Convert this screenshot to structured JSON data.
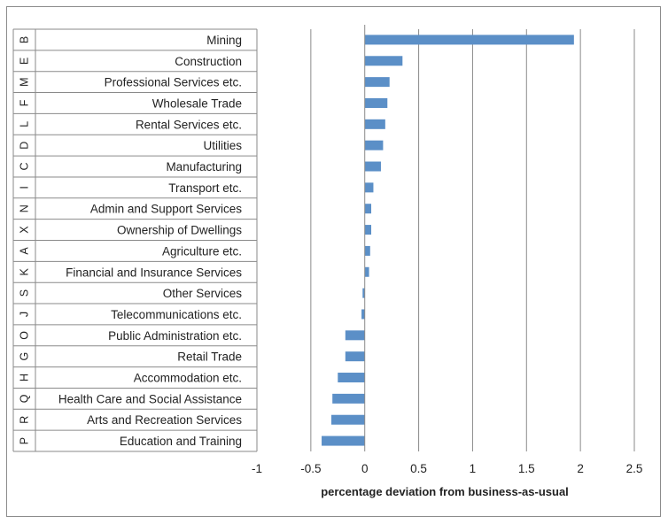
{
  "chart_data": {
    "type": "bar",
    "orientation": "horizontal",
    "xlabel": "percentage deviation from business-as-usual",
    "xlim": [
      -1,
      2.5
    ],
    "xticks": [
      "-1",
      "-0.5",
      "0",
      "0.5",
      "1",
      "1.5",
      "2",
      "2.5"
    ],
    "xtick_values": [
      -1,
      -0.5,
      0,
      0.5,
      1,
      1.5,
      2,
      2.5
    ],
    "grid": "vertical",
    "bar_color": "#5b8fc7",
    "categories": [
      {
        "code": "B",
        "label": "Mining",
        "value": 1.94
      },
      {
        "code": "E",
        "label": "Construction",
        "value": 0.35
      },
      {
        "code": "M",
        "label": "Professional Services etc.",
        "value": 0.23
      },
      {
        "code": "F",
        "label": "Wholesale Trade",
        "value": 0.21
      },
      {
        "code": "L",
        "label": "Rental Services etc.",
        "value": 0.19
      },
      {
        "code": "D",
        "label": "Utilities",
        "value": 0.17
      },
      {
        "code": "C",
        "label": "Manufacturing",
        "value": 0.15
      },
      {
        "code": "I",
        "label": "Transport etc.",
        "value": 0.08
      },
      {
        "code": "N",
        "label": "Admin and Support Services",
        "value": 0.06
      },
      {
        "code": "X",
        "label": "Ownership of Dwellings",
        "value": 0.06
      },
      {
        "code": "A",
        "label": "Agriculture etc.",
        "value": 0.05
      },
      {
        "code": "K",
        "label": "Financial and Insurance Services",
        "value": 0.04
      },
      {
        "code": "S",
        "label": "Other Services",
        "value": -0.02
      },
      {
        "code": "J",
        "label": "Telecommunications etc.",
        "value": -0.03
      },
      {
        "code": "O",
        "label": "Public Administration etc.",
        "value": -0.18
      },
      {
        "code": "G",
        "label": "Retail Trade",
        "value": -0.18
      },
      {
        "code": "H",
        "label": "Accommodation etc.",
        "value": -0.25
      },
      {
        "code": "Q",
        "label": "Health Care and Social Assistance",
        "value": -0.3
      },
      {
        "code": "R",
        "label": "Arts and Recreation Services",
        "value": -0.31
      },
      {
        "code": "P",
        "label": "Education and Training",
        "value": -0.4
      }
    ]
  }
}
